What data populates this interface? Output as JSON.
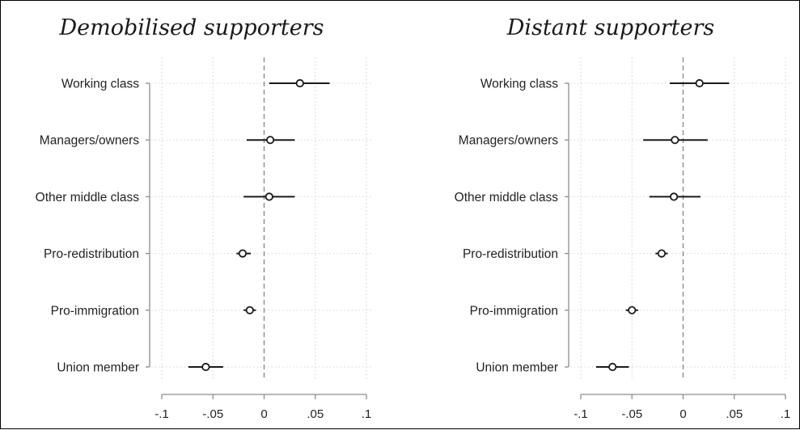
{
  "chart_data": [
    {
      "type": "scatter",
      "title": "Demobilised supporters",
      "xlabel": "",
      "ylabel": "",
      "categories": [
        "Working class",
        "Managers/owners",
        "Other middle class",
        "Pro-redistribution",
        "Pro-immigration",
        "Union member"
      ],
      "series": [
        {
          "estimates": [
            0.035,
            0.006,
            0.005,
            -0.021,
            -0.014,
            -0.057
          ],
          "ci_low": [
            0.005,
            -0.017,
            -0.02,
            -0.027,
            -0.02,
            -0.074
          ],
          "ci_high": [
            0.064,
            0.03,
            0.03,
            -0.013,
            -0.008,
            -0.04
          ]
        }
      ],
      "xlim": [
        -0.1,
        0.1
      ],
      "xticks": [
        -0.1,
        -0.05,
        0,
        0.05,
        0.1
      ],
      "xtick_labels": [
        "-.1",
        "-.05",
        "0",
        ".05",
        ".1"
      ],
      "reference_line": 0,
      "grid": true
    },
    {
      "type": "scatter",
      "title": "Distant supporters",
      "xlabel": "",
      "ylabel": "",
      "categories": [
        "Working class",
        "Managers/owners",
        "Other middle class",
        "Pro-redistribution",
        "Pro-immigration",
        "Union member"
      ],
      "series": [
        {
          "estimates": [
            0.016,
            -0.008,
            -0.009,
            -0.021,
            -0.05,
            -0.069
          ],
          "ci_low": [
            -0.013,
            -0.039,
            -0.033,
            -0.027,
            -0.056,
            -0.085
          ],
          "ci_high": [
            0.045,
            0.024,
            0.017,
            -0.015,
            -0.044,
            -0.053
          ]
        }
      ],
      "xlim": [
        -0.1,
        0.1
      ],
      "xticks": [
        -0.1,
        -0.05,
        0,
        0.05,
        0.1
      ],
      "xtick_labels": [
        "-.1",
        "-.05",
        "0",
        ".05",
        ".1"
      ],
      "reference_line": 0,
      "grid": true
    }
  ]
}
